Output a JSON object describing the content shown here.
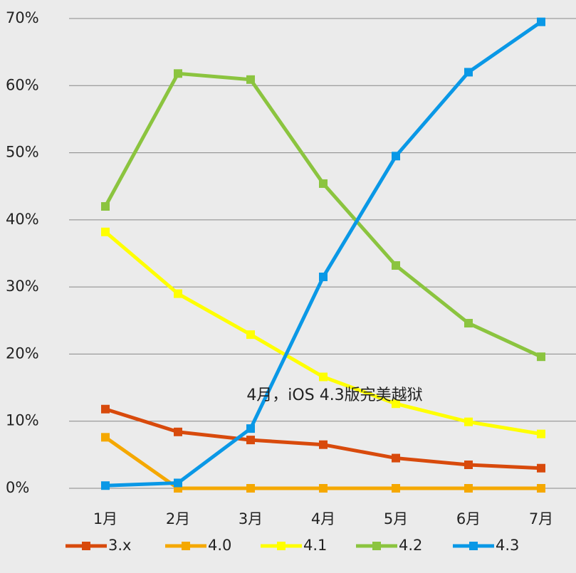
{
  "chart_data": {
    "type": "line",
    "categories": [
      "1月",
      "2月",
      "3月",
      "4月",
      "5月",
      "6月",
      "7月"
    ],
    "series": [
      {
        "name": "3.x",
        "color": "#d84a0c",
        "values": [
          11.8,
          8.4,
          7.2,
          6.5,
          4.5,
          3.5,
          3.0
        ]
      },
      {
        "name": "4.0",
        "color": "#f5a800",
        "values": [
          7.6,
          0,
          0,
          0,
          0,
          0,
          0
        ]
      },
      {
        "name": "4.1",
        "color": "#ffff00",
        "values": [
          38.2,
          29.0,
          22.9,
          16.6,
          12.6,
          9.9,
          8.1
        ]
      },
      {
        "name": "4.2",
        "color": "#8bc43f",
        "values": [
          42.0,
          61.8,
          60.9,
          45.4,
          33.2,
          24.6,
          19.6
        ]
      },
      {
        "name": "4.3",
        "color": "#0a98e6",
        "values": [
          0.4,
          0.8,
          8.9,
          31.5,
          49.5,
          62.0,
          69.5
        ]
      }
    ],
    "ylim": [
      0,
      70
    ],
    "yticks": [
      {
        "value": 0,
        "label": "0%"
      },
      {
        "value": 10,
        "label": "10%"
      },
      {
        "value": 20,
        "label": "20%"
      },
      {
        "value": 30,
        "label": "30%"
      },
      {
        "value": 40,
        "label": "40%"
      },
      {
        "value": 50,
        "label": "50%"
      },
      {
        "value": 60,
        "label": "60%"
      },
      {
        "value": 70,
        "label": "70%"
      }
    ],
    "grid": true,
    "legend": "bottom",
    "annotation": "4月，iOS 4.3版完美越狱"
  }
}
